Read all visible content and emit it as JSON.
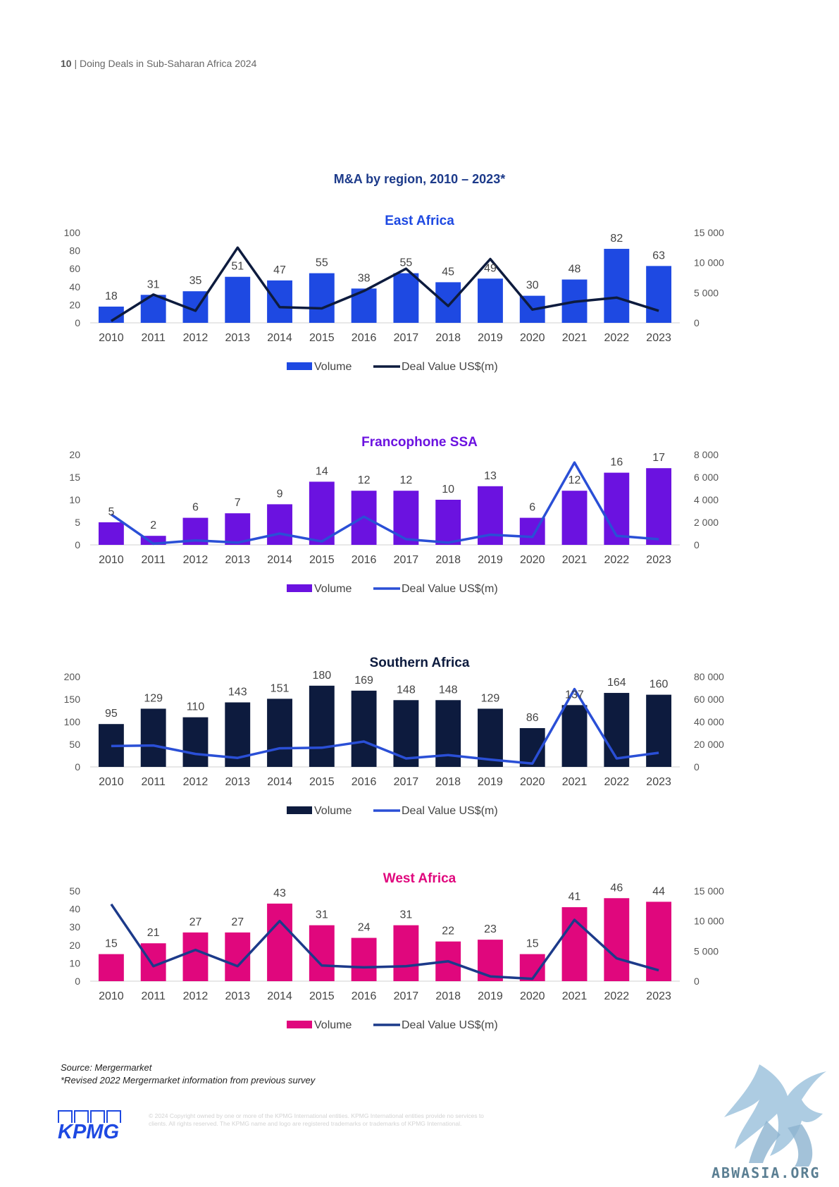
{
  "header": {
    "page_number": "10",
    "separator": "|",
    "doc_title": "Doing Deals in Sub-Saharan Africa 2024"
  },
  "main_title": "M&A by region, 2010 – 2023*",
  "legend": {
    "volume": "Volume",
    "value": "Deal Value US$(m)"
  },
  "chart_data": [
    {
      "type": "bar",
      "title": "East Africa",
      "title_color": "#1e49e2",
      "bar_color": "#1e49e2",
      "line_color": "#0d1b3e",
      "categories": [
        "2010",
        "2011",
        "2012",
        "2013",
        "2014",
        "2015",
        "2016",
        "2017",
        "2018",
        "2019",
        "2020",
        "2021",
        "2022",
        "2023"
      ],
      "left_axis": {
        "ticks": [
          "0",
          "20",
          "40",
          "60",
          "80",
          "100"
        ],
        "max": 100
      },
      "right_axis": {
        "ticks": [
          "0",
          "5 000",
          "10 000",
          "15 000"
        ],
        "max": 15000
      },
      "series": [
        {
          "name": "Volume",
          "type": "bar",
          "values": [
            18,
            31,
            35,
            51,
            47,
            55,
            38,
            55,
            45,
            49,
            30,
            48,
            82,
            63
          ]
        },
        {
          "name": "Deal Value US$(m)",
          "type": "line",
          "values": [
            300,
            4700,
            2000,
            12500,
            2600,
            2400,
            5300,
            9000,
            2800,
            10600,
            2200,
            3500,
            4200,
            2000
          ]
        }
      ]
    },
    {
      "type": "bar",
      "title": "Francophone SSA",
      "title_color": "#6b12e0",
      "bar_color": "#6b12e0",
      "line_color": "#2a4fd6",
      "categories": [
        "2010",
        "2011",
        "2012",
        "2013",
        "2014",
        "2015",
        "2016",
        "2017",
        "2018",
        "2019",
        "2020",
        "2021",
        "2022",
        "2023"
      ],
      "left_axis": {
        "ticks": [
          "0",
          "5",
          "10",
          "15",
          "20"
        ],
        "max": 20
      },
      "right_axis": {
        "ticks": [
          "0",
          "2 000",
          "4 000",
          "6 000",
          "8 000"
        ],
        "max": 8000
      },
      "series": [
        {
          "name": "Volume",
          "type": "bar",
          "values": [
            5,
            2,
            6,
            7,
            9,
            14,
            12,
            12,
            10,
            13,
            6,
            12,
            16,
            17
          ]
        },
        {
          "name": "Deal Value US$(m)",
          "type": "line",
          "values": [
            2700,
            100,
            400,
            200,
            1000,
            300,
            2500,
            500,
            200,
            900,
            700,
            7300,
            800,
            500
          ]
        }
      ]
    },
    {
      "type": "bar",
      "title": "Southern Africa",
      "title_color": "#0d1b3e",
      "bar_color": "#0d1b3e",
      "line_color": "#2a4fd6",
      "categories": [
        "2010",
        "2011",
        "2012",
        "2013",
        "2014",
        "2015",
        "2016",
        "2017",
        "2018",
        "2019",
        "2020",
        "2021",
        "2022",
        "2023"
      ],
      "left_axis": {
        "ticks": [
          "0",
          "50",
          "100",
          "150",
          "200"
        ],
        "max": 200
      },
      "right_axis": {
        "ticks": [
          "0",
          "20 000",
          "40 000",
          "60 000",
          "80 000"
        ],
        "max": 80000
      },
      "series": [
        {
          "name": "Volume",
          "type": "bar",
          "values": [
            95,
            129,
            110,
            143,
            151,
            180,
            169,
            148,
            148,
            129,
            86,
            137,
            164,
            160
          ]
        },
        {
          "name": "Deal Value US$(m)",
          "type": "line",
          "values": [
            18500,
            19000,
            11500,
            8000,
            16500,
            17000,
            22500,
            7500,
            10500,
            6500,
            3000,
            69000,
            7500,
            12500
          ]
        }
      ]
    },
    {
      "type": "bar",
      "title": "West Africa",
      "title_color": "#e0077d",
      "bar_color": "#e0077d",
      "line_color": "#1c3a8a",
      "categories": [
        "2010",
        "2011",
        "2012",
        "2013",
        "2014",
        "2015",
        "2016",
        "2017",
        "2018",
        "2019",
        "2020",
        "2021",
        "2022",
        "2023"
      ],
      "left_axis": {
        "ticks": [
          "0",
          "10",
          "20",
          "30",
          "40",
          "50"
        ],
        "max": 50
      },
      "right_axis": {
        "ticks": [
          "0",
          "5 000",
          "10 000",
          "15 000"
        ],
        "max": 15000
      },
      "series": [
        {
          "name": "Volume",
          "type": "bar",
          "values": [
            15,
            21,
            27,
            27,
            43,
            31,
            24,
            31,
            22,
            23,
            15,
            41,
            46,
            44
          ]
        },
        {
          "name": "Deal Value US$(m)",
          "type": "line",
          "values": [
            12800,
            2500,
            5200,
            2500,
            10000,
            2600,
            2300,
            2500,
            3300,
            800,
            400,
            10200,
            3800,
            1800
          ]
        }
      ]
    }
  ],
  "source": {
    "line1": "Source: Mergermarket",
    "line2": "*Revised 2022 Mergermarket information from previous survey"
  },
  "footer": {
    "logo_text": "KPMG",
    "copyright": "© 2024 Copyright owned by one or more of the KPMG International entities. KPMG International entities provide no services to clients. All rights reserved. The KPMG name and logo are registered trademarks or trademarks of KPMG International."
  },
  "watermark": {
    "text": "ABWASIA.ORG"
  }
}
